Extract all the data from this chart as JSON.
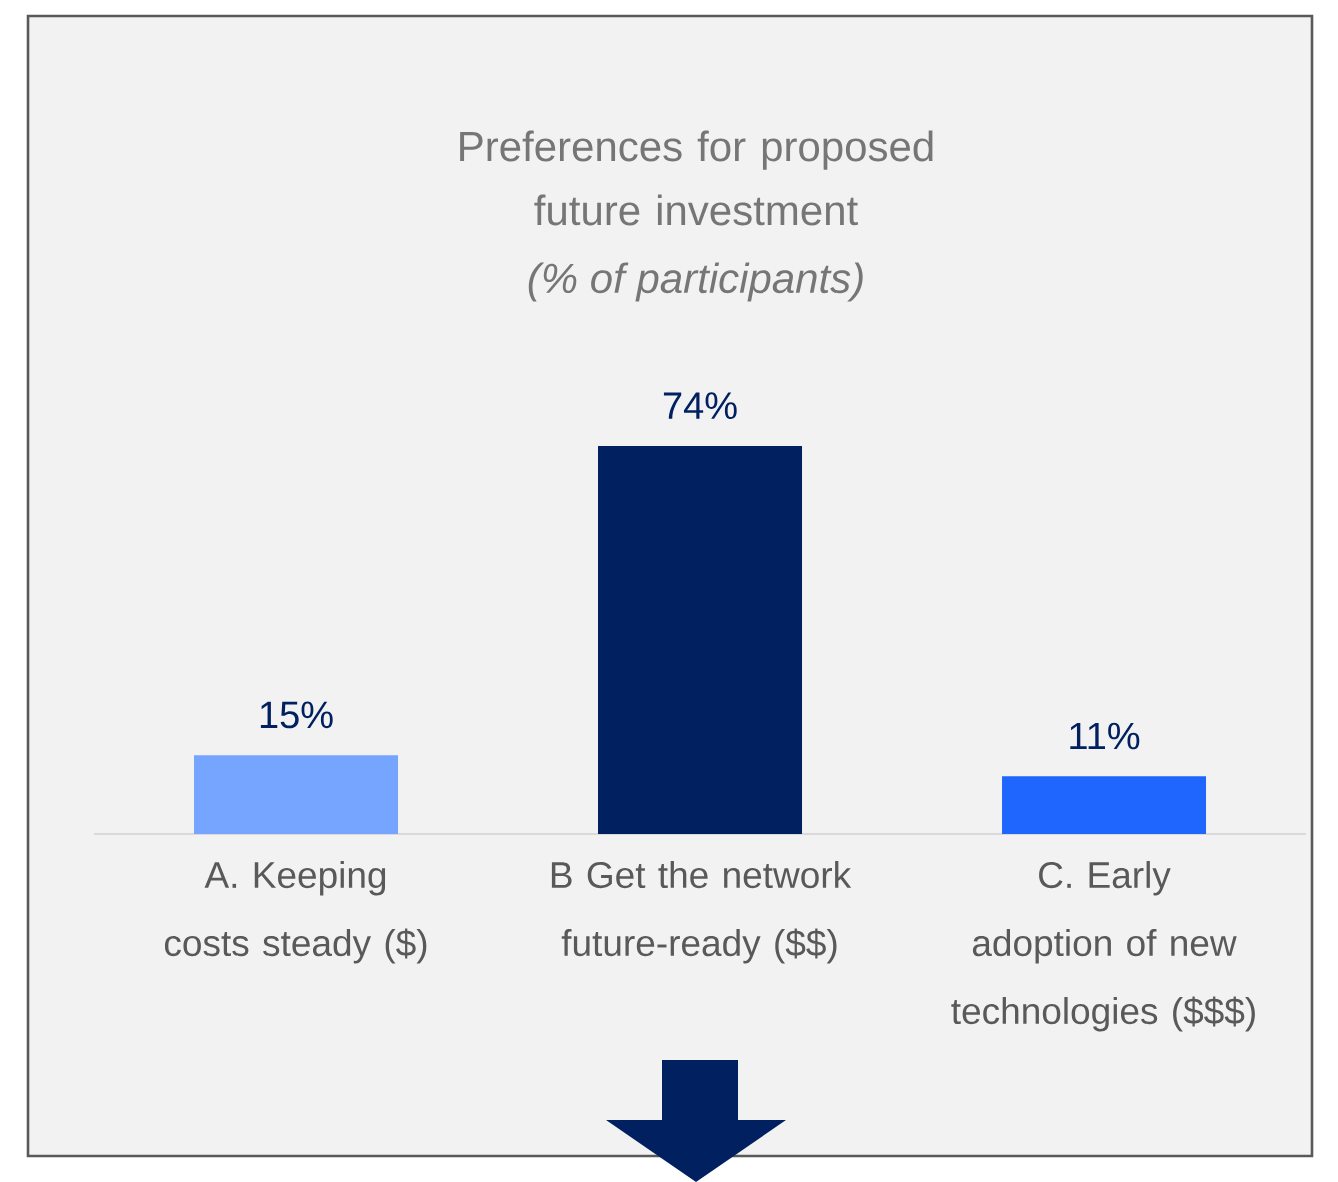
{
  "chart_data": {
    "type": "bar",
    "title": "Preferences for proposed future investment",
    "subtitle": "(% of participants)",
    "categories": [
      "A. Keeping costs steady ($)",
      "B Get the network future-ready ($$)",
      "C. Early adoption of new technologies ($$$)"
    ],
    "values": [
      15,
      74,
      11
    ],
    "colors": [
      "#76a5ff",
      "#002060",
      "#1f66ff"
    ],
    "value_labels": [
      "15%",
      "74%",
      "11%"
    ]
  }
}
